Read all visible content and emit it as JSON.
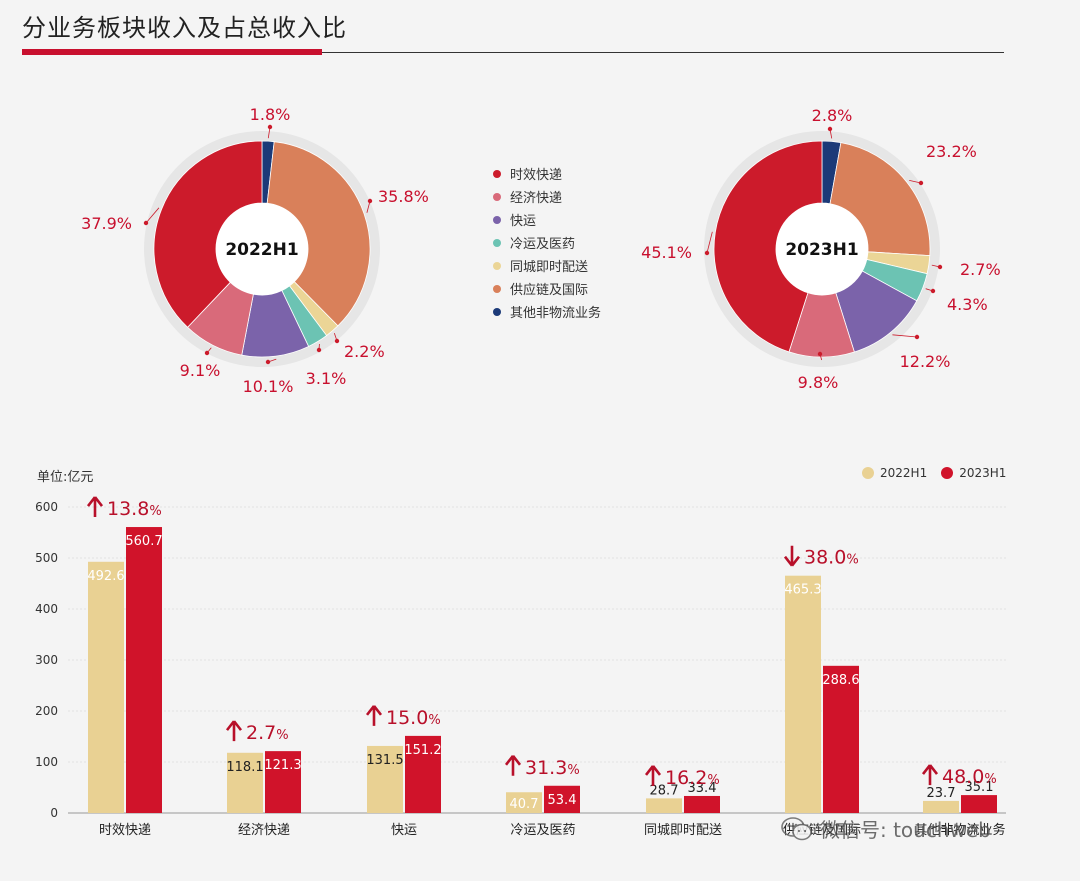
{
  "header": {
    "title": "分业务板块收入及占总收入比"
  },
  "legend": {
    "items": [
      {
        "label": "时效快递",
        "color": "#cc1b2b"
      },
      {
        "label": "经济快递",
        "color": "#d96a7a"
      },
      {
        "label": "快运",
        "color": "#7b63aa"
      },
      {
        "label": "冷运及医药",
        "color": "#6cc3b3"
      },
      {
        "label": "同城即时配送",
        "color": "#ebd596"
      },
      {
        "label": "供应链及国际",
        "color": "#d9805a"
      },
      {
        "label": "其他非物流业务",
        "color": "#1c3a78"
      }
    ]
  },
  "bar_legend": {
    "a": "2022H1",
    "b": "2023H1",
    "a_color": "#e9d193",
    "b_color": "#d0132a"
  },
  "watermark": {
    "text": "微信号: touchweb",
    "icon": "wechat-icon"
  },
  "chart_data": [
    {
      "type": "pie",
      "title": "2022H1",
      "categories": [
        "时效快递",
        "经济快递",
        "快运",
        "冷运及医药",
        "同城即时配送",
        "供应链及国际",
        "其他非物流业务"
      ],
      "values": [
        37.9,
        9.1,
        10.1,
        3.1,
        2.2,
        35.8,
        1.8
      ],
      "labels": [
        "37.9%",
        "9.1%",
        "10.1%",
        "3.1%",
        "2.2%",
        "35.8%",
        "1.8%"
      ]
    },
    {
      "type": "pie",
      "title": "2023H1",
      "categories": [
        "时效快递",
        "经济快递",
        "快运",
        "冷运及医药",
        "同城即时配送",
        "供应链及国际",
        "其他非物流业务"
      ],
      "values": [
        45.1,
        9.8,
        12.2,
        4.3,
        2.7,
        23.2,
        2.8
      ],
      "labels": [
        "45.1%",
        "9.8%",
        "12.2%",
        "4.3%",
        "2.7%",
        "23.2%",
        "2.8%"
      ]
    },
    {
      "type": "bar",
      "ylabel": "单位:亿元",
      "ylim": [
        0,
        600
      ],
      "yticks": [
        0,
        100,
        200,
        300,
        400,
        500,
        600
      ],
      "categories": [
        "时效快递",
        "经济快递",
        "快运",
        "冷运及医药",
        "同城即时配送",
        "供应链及国际",
        "其他非物流业务"
      ],
      "series": [
        {
          "name": "2022H1",
          "values": [
            492.6,
            118.1,
            131.5,
            40.7,
            28.7,
            465.3,
            23.7
          ]
        },
        {
          "name": "2023H1",
          "values": [
            560.7,
            121.3,
            151.2,
            53.4,
            33.4,
            288.6,
            35.1
          ]
        }
      ],
      "changes": [
        {
          "dir": "up",
          "num": "13.8",
          "pct": "%"
        },
        {
          "dir": "up",
          "num": "2.7",
          "pct": "%"
        },
        {
          "dir": "up",
          "num": "15.0",
          "pct": "%"
        },
        {
          "dir": "up",
          "num": "31.3",
          "pct": "%"
        },
        {
          "dir": "up",
          "num": "16.2",
          "pct": "%"
        },
        {
          "dir": "down",
          "num": "38.0",
          "pct": "%"
        },
        {
          "dir": "up",
          "num": "48.0",
          "pct": "%"
        }
      ]
    }
  ]
}
